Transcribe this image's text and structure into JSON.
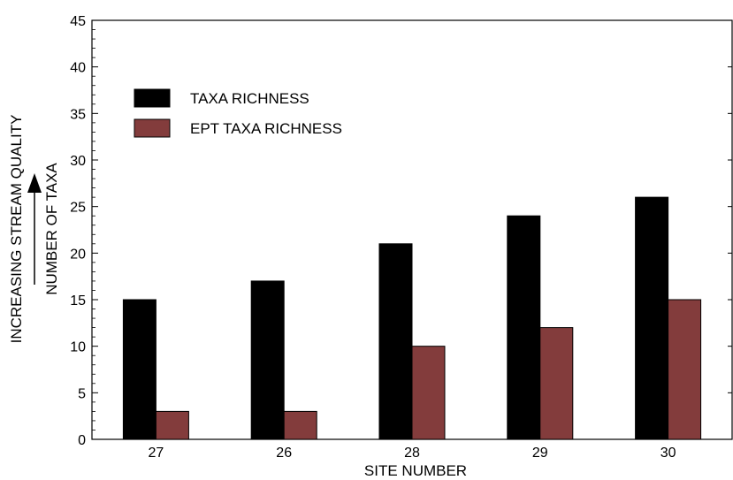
{
  "chart_data": {
    "type": "bar",
    "categories": [
      "27",
      "26",
      "28",
      "29",
      "30"
    ],
    "series": [
      {
        "name": "TAXA RICHNESS",
        "values": [
          15,
          17,
          21,
          24,
          26
        ],
        "color": "#000000"
      },
      {
        "name": "EPT TAXA RICHNESS",
        "values": [
          3,
          3,
          10,
          12,
          15
        ],
        "color": "#833c3c"
      }
    ],
    "xlabel": "SITE NUMBER",
    "ylabel": "NUMBER OF TAXA",
    "side_label": "INCREASING STREAM QUALITY",
    "ylim": [
      0,
      45
    ],
    "yticks": [
      "0",
      "5",
      "10",
      "15",
      "20",
      "25",
      "30",
      "35",
      "40",
      "45"
    ],
    "legend_position": "top-left",
    "grid": false
  }
}
